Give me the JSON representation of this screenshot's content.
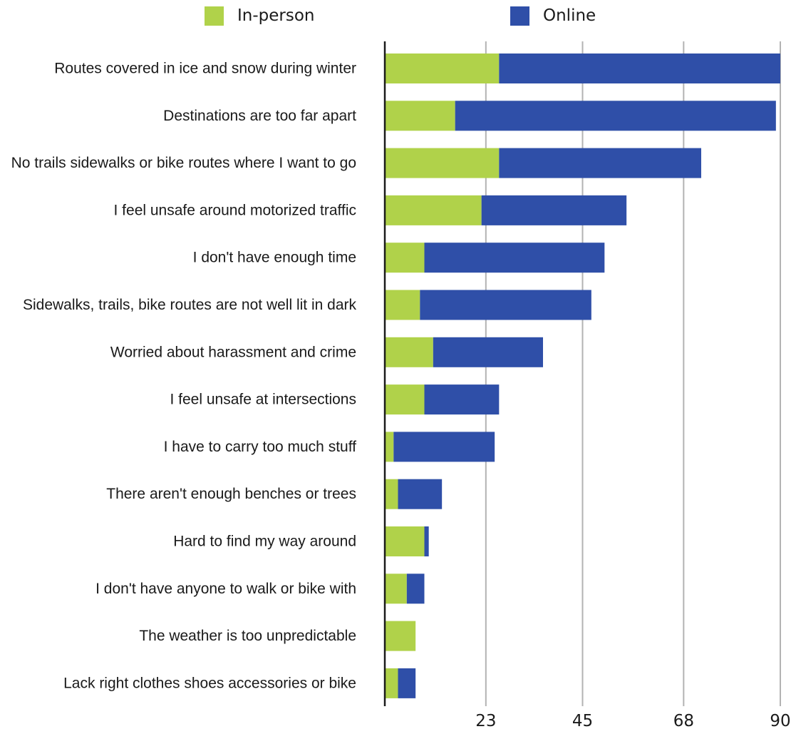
{
  "chart_data": {
    "type": "bar",
    "orientation": "horizontal",
    "stacked": true,
    "title": "",
    "xlabel": "",
    "ylabel": "",
    "xlim": [
      0,
      90
    ],
    "grid": true,
    "legend_position": "top",
    "xticks": [
      23,
      45,
      68,
      90
    ],
    "categories": [
      "Routes covered in ice and snow during winter",
      "Destinations are too far apart",
      "No trails sidewalks or bike routes where I want to go",
      "I feel unsafe around motorized traffic",
      "I don't have enough time",
      "Sidewalks, trails, bike routes are not well lit in dark",
      "Worried about harassment and crime",
      "I feel unsafe at intersections",
      "I have to carry too much stuff",
      "There aren't enough benches or trees",
      "Hard to find my way around",
      "I don't have anyone to walk or bike with",
      "The weather is too unpredictable",
      "Lack right clothes shoes accessories or bike"
    ],
    "series": [
      {
        "name": "In-person",
        "color": "#b0d24a",
        "values": [
          26,
          16,
          26,
          22,
          9,
          8,
          11,
          9,
          2,
          3,
          9,
          5,
          7,
          3
        ]
      },
      {
        "name": "Online",
        "color": "#2f4fa8",
        "values": [
          64,
          73,
          46,
          33,
          41,
          39,
          25,
          17,
          23,
          10,
          1,
          4,
          0,
          4
        ]
      }
    ]
  }
}
